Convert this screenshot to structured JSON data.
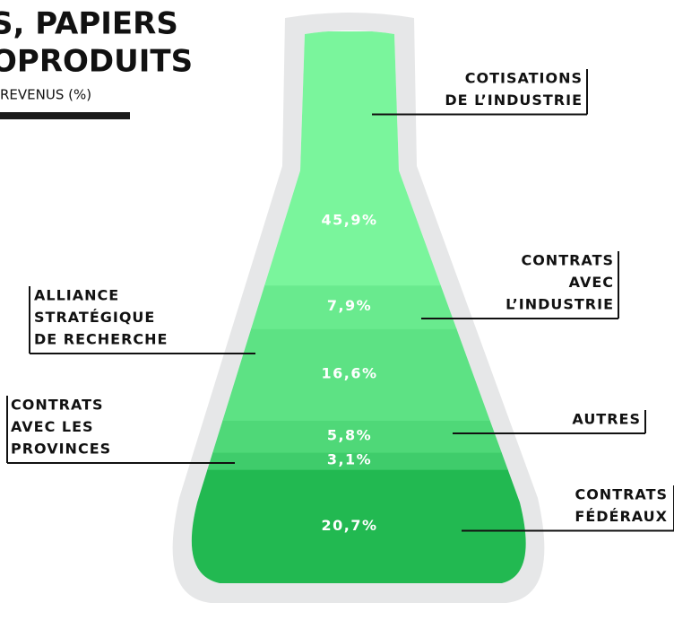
{
  "chart_data": {
    "type": "stack",
    "title_lines": [
      "S, PAPIERS",
      "OPRODUITS"
    ],
    "subtitle": "REVENUS (%)",
    "categories": [
      [
        "CONTRATS",
        "FÉDÉRAUX"
      ],
      [
        "CONTRATS",
        "AVEC LES",
        "PROVINCES"
      ],
      [
        "AUTRES"
      ],
      [
        "ALLIANCE",
        "STRATÉGIQUE",
        "DE RECHERCHE"
      ],
      [
        "CONTRATS",
        "AVEC",
        "L’INDUSTRIE"
      ],
      [
        "COTISATIONS",
        "DE L’INDUSTRIE"
      ]
    ],
    "values": [
      20.7,
      3.1,
      5.8,
      16.6,
      7.9,
      45.9
    ],
    "value_labels": [
      "20,7%",
      "3,1%",
      "5,8%",
      "16,6%",
      "7,9%",
      "45,9%"
    ],
    "colors": [
      "#22b951",
      "#3fcc6b",
      "#4fd878",
      "#5de284",
      "#69ea8e",
      "#7af59c"
    ]
  }
}
